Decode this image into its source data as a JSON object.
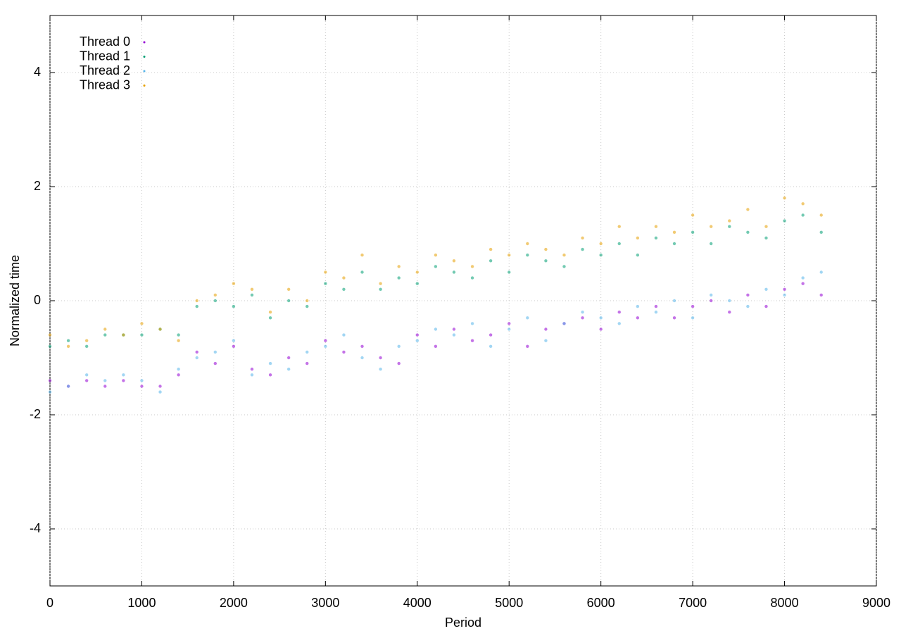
{
  "chart_data": {
    "type": "scatter",
    "xlabel": "Period",
    "ylabel": "Normalized time",
    "xlim": [
      0,
      9000
    ],
    "ylim": [
      -5,
      5
    ],
    "xticks": [
      0,
      1000,
      2000,
      3000,
      4000,
      5000,
      6000,
      7000,
      8000,
      9000
    ],
    "yticks": [
      -4,
      -2,
      0,
      2,
      4
    ],
    "grid": true,
    "legend": "upper left",
    "x": [
      0,
      200,
      400,
      600,
      800,
      1000,
      1200,
      1400,
      1600,
      1800,
      2000,
      2200,
      2400,
      2600,
      2800,
      3000,
      3200,
      3400,
      3600,
      3800,
      4000,
      4200,
      4400,
      4600,
      4800,
      5000,
      5200,
      5400,
      5600,
      5800,
      6000,
      6200,
      6400,
      6600,
      6800,
      7000,
      7200,
      7400,
      7600,
      7800,
      8000,
      8200,
      8400
    ],
    "series": [
      {
        "name": "Thread 0",
        "color": "#9400d3",
        "values": [
          -1.4,
          -1.5,
          -1.4,
          -1.5,
          -1.4,
          -1.5,
          -1.5,
          -1.3,
          -0.9,
          -1.1,
          -0.8,
          -1.2,
          -1.3,
          -1.0,
          -1.1,
          -0.7,
          -0.9,
          -0.8,
          -1.0,
          -1.1,
          -0.6,
          -0.8,
          -0.5,
          -0.7,
          -0.6,
          -0.4,
          -0.8,
          -0.5,
          -0.4,
          -0.3,
          -0.5,
          -0.2,
          -0.3,
          -0.1,
          -0.3,
          -0.1,
          0.0,
          -0.2,
          0.1,
          -0.1,
          0.2,
          0.3,
          0.1
        ]
      },
      {
        "name": "Thread 1",
        "color": "#009e73",
        "values": [
          -0.8,
          -0.7,
          -0.8,
          -0.6,
          -0.6,
          -0.6,
          -0.5,
          -0.6,
          -0.1,
          0.0,
          -0.1,
          0.1,
          -0.3,
          0.0,
          -0.1,
          0.3,
          0.2,
          0.5,
          0.2,
          0.4,
          0.3,
          0.6,
          0.5,
          0.4,
          0.7,
          0.5,
          0.8,
          0.7,
          0.6,
          0.9,
          0.8,
          1.0,
          0.8,
          1.1,
          1.0,
          1.2,
          1.0,
          1.3,
          1.2,
          1.1,
          1.4,
          1.5,
          1.2
        ]
      },
      {
        "name": "Thread 2",
        "color": "#56b4e9",
        "values": [
          -1.6,
          -1.5,
          -1.3,
          -1.4,
          -1.3,
          -1.4,
          -1.6,
          -1.2,
          -1.0,
          -0.9,
          -0.7,
          -1.3,
          -1.1,
          -1.2,
          -0.9,
          -0.8,
          -0.6,
          -1.0,
          -1.2,
          -0.8,
          -0.7,
          -0.5,
          -0.6,
          -0.4,
          -0.8,
          -0.5,
          -0.3,
          -0.7,
          -0.4,
          -0.2,
          -0.3,
          -0.4,
          -0.1,
          -0.2,
          0.0,
          -0.3,
          0.1,
          0.0,
          -0.1,
          0.2,
          0.1,
          0.4,
          0.5
        ]
      },
      {
        "name": "Thread 3",
        "color": "#e69f00",
        "values": [
          -0.6,
          -0.8,
          -0.7,
          -0.5,
          -0.6,
          -0.4,
          -0.5,
          -0.7,
          0.0,
          0.1,
          0.3,
          0.2,
          -0.2,
          0.2,
          0.0,
          0.5,
          0.4,
          0.8,
          0.3,
          0.6,
          0.5,
          0.8,
          0.7,
          0.6,
          0.9,
          0.8,
          1.0,
          0.9,
          0.8,
          1.1,
          1.0,
          1.3,
          1.1,
          1.3,
          1.2,
          1.5,
          1.3,
          1.4,
          1.6,
          1.3,
          1.8,
          1.7,
          1.5
        ]
      }
    ]
  }
}
